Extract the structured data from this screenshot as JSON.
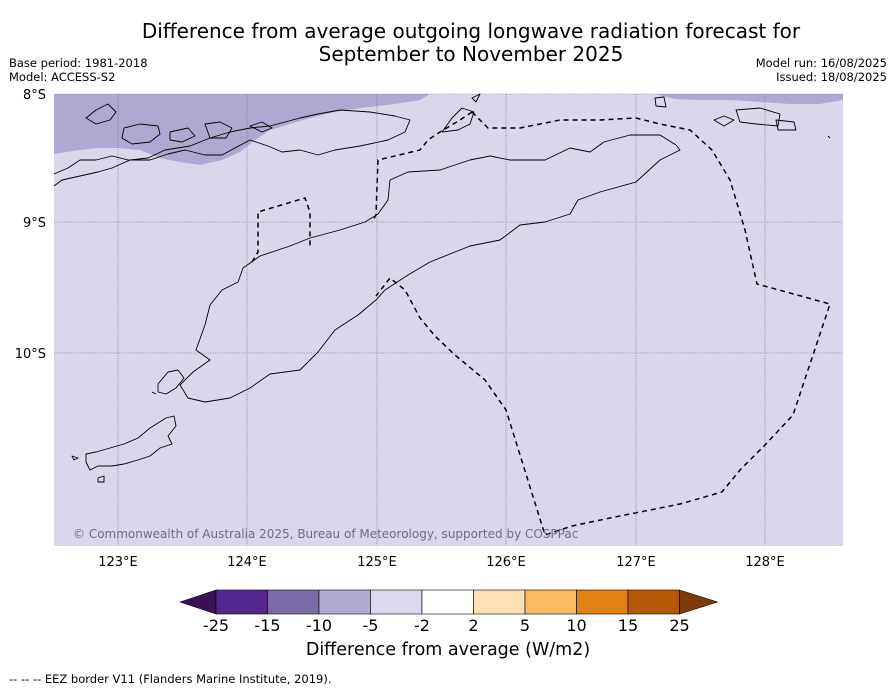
{
  "title_line1": "Difference from average outgoing longwave radiation forecast for",
  "title_line2": "September to November 2025",
  "meta_left": {
    "base_period": "Base period: 1981-2018",
    "model": "Model: ACCESS-S2"
  },
  "meta_right": {
    "model_run": "Model run: 16/08/2025",
    "issued": "Issued: 18/08/2025"
  },
  "lat_labels": [
    "8°S",
    "9°S",
    "10°S"
  ],
  "lon_labels": [
    "123°E",
    "124°E",
    "125°E",
    "126°E",
    "127°E",
    "128°E"
  ],
  "copyright": "© Commonwealth of Australia 2025, Bureau of Meteorology, supported by COSPPac",
  "colorbar": {
    "colors": [
      "#3b1251",
      "#54278f",
      "#7a6aa8",
      "#aea9d2",
      "#d9d9eb",
      "#ffffff",
      "#fee0b6",
      "#fdb863",
      "#e08214",
      "#b35806",
      "#7f3b08"
    ],
    "tick_labels": [
      "-25",
      "-15",
      "-10",
      "-5",
      "-2",
      "2",
      "5",
      "10",
      "15",
      "25"
    ],
    "title": "Difference from average (W/m2)"
  },
  "map_colors": {
    "background": "#d8d8ea",
    "negative_anomaly": "#aea9d2"
  },
  "footnote": "--  --  -- EEZ border V11 (Flanders Marine Institute, 2019)."
}
